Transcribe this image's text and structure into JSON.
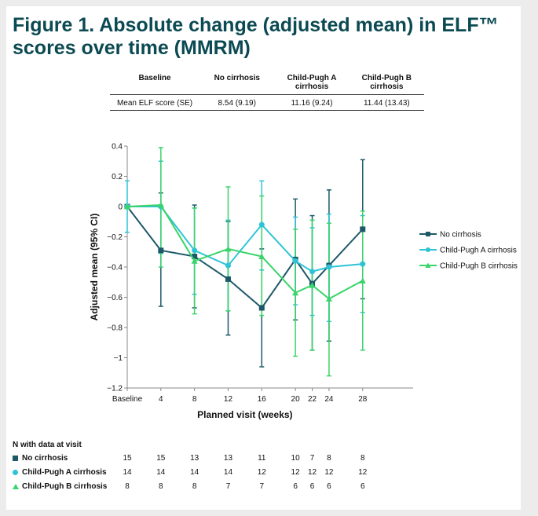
{
  "title": "Figure 1. Absolute change (adjusted mean) in ELF™ scores over time (MMRM)",
  "baseline_table": {
    "headers": [
      "Baseline",
      "No cirrhosis",
      "Child-Pugh A cirrhosis",
      "Child-Pugh B cirrhosis"
    ],
    "row_label": "Mean ELF score (SE)",
    "values": [
      "8.54 (9.19)",
      "11.16 (9.24)",
      "11.44 (13.43)"
    ]
  },
  "chart_data": {
    "type": "line",
    "xlabel": "Planned visit (weeks)",
    "ylabel": "Adjusted mean (95% CI)",
    "x_categories": [
      "Baseline",
      "4",
      "8",
      "12",
      "16",
      "20",
      "22",
      "24",
      "28"
    ],
    "x": [
      0,
      4,
      8,
      12,
      16,
      20,
      22,
      24,
      28
    ],
    "ylim": [
      -1.2,
      0.4
    ],
    "yticks": [
      0.4,
      0.2,
      0,
      -0.2,
      -0.4,
      -0.6,
      -0.8,
      -1,
      -1.2
    ],
    "ytick_labels": [
      "0.4",
      "0.2",
      "0",
      "−0.2",
      "−0.4",
      "−0.6",
      "−0.8",
      "−1",
      "−1.2"
    ],
    "legend_position": "right",
    "series": [
      {
        "name": "No cirrhosis",
        "color": "#1d5868",
        "marker": "square",
        "x": [
          0,
          4,
          8,
          12,
          16,
          20,
          22,
          24,
          28
        ],
        "y": [
          0,
          -0.29,
          -0.33,
          -0.48,
          -0.67,
          -0.35,
          -0.51,
          -0.39,
          -0.15
        ],
        "lower": [
          0,
          -0.66,
          -0.67,
          -0.85,
          -1.06,
          -0.75,
          -0.95,
          -0.89,
          -0.61
        ],
        "upper": [
          0,
          0.09,
          0.01,
          -0.1,
          -0.28,
          0.05,
          -0.06,
          0.11,
          0.31
        ]
      },
      {
        "name": "Child-Pugh A cirrhosis",
        "color": "#2ec4d6",
        "marker": "circle",
        "x": [
          0,
          4,
          8,
          12,
          16,
          20,
          22,
          24,
          28
        ],
        "y": [
          0,
          0,
          -0.29,
          -0.39,
          -0.12,
          -0.36,
          -0.43,
          -0.4,
          -0.38
        ],
        "lower": [
          -0.17,
          -0.31,
          -0.58,
          -0.69,
          -0.42,
          -0.65,
          -0.72,
          -0.76,
          -0.7
        ],
        "upper": [
          0.17,
          0.3,
          -0.01,
          -0.09,
          0.17,
          -0.07,
          -0.14,
          -0.05,
          -0.06
        ]
      },
      {
        "name": "Child-Pugh B cirrhosis",
        "color": "#3ad46a",
        "marker": "triangle",
        "x": [
          0,
          4,
          8,
          12,
          16,
          20,
          22,
          24,
          28
        ],
        "y": [
          0,
          0.01,
          -0.36,
          -0.28,
          -0.33,
          -0.57,
          -0.52,
          -0.61,
          -0.49
        ],
        "lower": [
          0,
          -0.4,
          -0.71,
          -0.69,
          -0.72,
          -0.99,
          -0.95,
          -1.12,
          -0.95
        ],
        "upper": [
          0,
          0.39,
          -0.01,
          0.13,
          0.07,
          -0.15,
          -0.09,
          -0.11,
          -0.03
        ]
      }
    ]
  },
  "n_table": {
    "title": "N with data at visit",
    "rows": [
      {
        "label": "No cirrhosis",
        "values": [
          "15",
          "15",
          "13",
          "13",
          "11",
          "10",
          "7",
          "8",
          "8"
        ]
      },
      {
        "label": "Child-Pugh A cirrhosis",
        "values": [
          "14",
          "14",
          "14",
          "14",
          "12",
          "12",
          "12",
          "12",
          "12"
        ]
      },
      {
        "label": "Child-Pugh B cirrhosis",
        "values": [
          "8",
          "8",
          "8",
          "7",
          "7",
          "6",
          "6",
          "6",
          "6"
        ]
      }
    ]
  }
}
